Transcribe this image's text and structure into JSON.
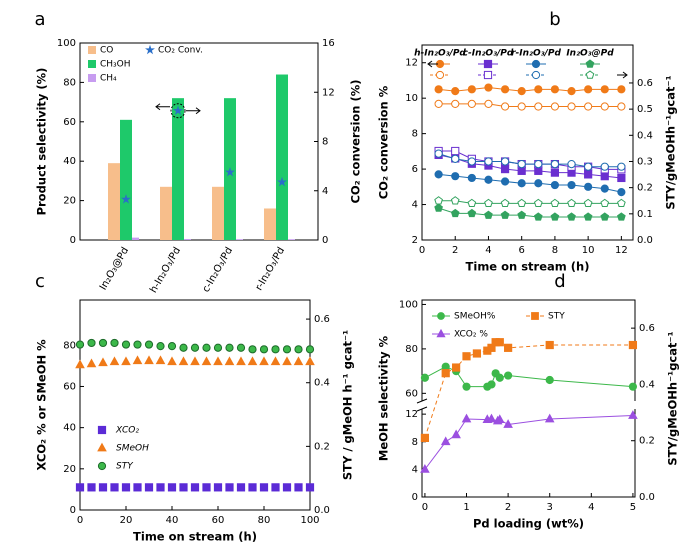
{
  "chart_data": [
    {
      "panel": "a",
      "type": "bar",
      "ylabel": "Product selectivity (%)",
      "y2label": "CO₂ conversion (%)",
      "categories": [
        "In₂O₃@Pd",
        "h-In₂O₃/Pd",
        "c-In₂O₃/Pd",
        "r-In₂O₃/Pd"
      ],
      "series": [
        {
          "name": "CO",
          "color": "#f7be8b",
          "values": [
            39,
            27,
            27,
            16
          ]
        },
        {
          "name": "CH₃OH",
          "color": "#1ec96a",
          "values": [
            61,
            72,
            72,
            84
          ]
        },
        {
          "name": "CH₄",
          "color": "#c79cf0",
          "values": [
            1.2,
            0.5,
            0.4,
            0.4
          ]
        },
        {
          "name": "CO₂ Conv.",
          "color": "#2a6fc9",
          "marker": "star",
          "axis": "y2",
          "values": [
            3.3,
            10.5,
            5.5,
            4.7
          ]
        }
      ],
      "ylim": [
        0,
        100
      ],
      "yticks": [
        0,
        20,
        40,
        60,
        80,
        100
      ],
      "y2lim": [
        0,
        16
      ],
      "y2ticks": [
        0,
        4,
        8,
        12,
        16
      ]
    },
    {
      "panel": "b",
      "type": "line",
      "xlabel": "Time on stream (h)",
      "ylabel": "CO₂ conversion %",
      "y2label": "STY/gMeOHh⁻¹gcat⁻¹",
      "x": [
        1,
        2,
        3,
        4,
        5,
        6,
        7,
        8,
        9,
        10,
        11,
        12
      ],
      "series": [
        {
          "name": "h-In₂O₃/Pd",
          "color": "#f07a18",
          "marker": "circle",
          "values": [
            10.5,
            10.4,
            10.5,
            10.6,
            10.5,
            10.4,
            10.5,
            10.5,
            10.4,
            10.5,
            10.5,
            10.5
          ],
          "y2_values": [
            0.52,
            0.52,
            0.52,
            0.52,
            0.51,
            0.51,
            0.51,
            0.51,
            0.51,
            0.51,
            0.51,
            0.51
          ]
        },
        {
          "name": "c-In₂O₃/Pd",
          "color": "#6a2fd0",
          "marker": "square",
          "values": [
            6.8,
            6.6,
            6.3,
            6.2,
            6.0,
            5.9,
            5.9,
            5.8,
            5.8,
            5.7,
            5.6,
            5.5
          ],
          "y2_values": [
            0.34,
            0.34,
            0.31,
            0.3,
            0.3,
            0.29,
            0.29,
            0.29,
            0.28,
            0.28,
            0.27,
            0.27
          ]
        },
        {
          "name": "r-In₂O₃/Pd",
          "color": "#1f6db0",
          "marker": "circle",
          "values": [
            5.7,
            5.6,
            5.5,
            5.4,
            5.3,
            5.2,
            5.2,
            5.1,
            5.1,
            5.0,
            4.9,
            4.7
          ],
          "y2_values": [
            0.33,
            0.31,
            0.3,
            0.3,
            0.3,
            0.29,
            0.29,
            0.29,
            0.29,
            0.28,
            0.28,
            0.28
          ]
        },
        {
          "name": "In₂O₃@Pd",
          "color": "#33a35f",
          "marker": "pentagon",
          "values": [
            3.8,
            3.5,
            3.5,
            3.4,
            3.4,
            3.4,
            3.3,
            3.3,
            3.3,
            3.3,
            3.3,
            3.3
          ],
          "y2_values": [
            0.15,
            0.15,
            0.14,
            0.14,
            0.14,
            0.14,
            0.14,
            0.14,
            0.14,
            0.14,
            0.14,
            0.14
          ]
        }
      ],
      "xlim": [
        0,
        12.7
      ],
      "xticks": [
        0,
        2,
        4,
        6,
        8,
        10,
        12
      ],
      "ylim": [
        2,
        13
      ],
      "yticks": [
        2,
        4,
        6,
        8,
        10,
        12
      ],
      "y2lim": [
        0,
        0.745
      ],
      "y2ticks": [
        {
          "value": 0,
          "label": "0.0"
        },
        0.1,
        0.2,
        0.3,
        0.4,
        0.5,
        0.6
      ]
    },
    {
      "panel": "c",
      "type": "scatter",
      "xlabel": "Time on stream (h)",
      "ylabel": "XCO₂ % or SMeOH %",
      "y2label": "STY / gMeOH h⁻¹ gcat⁻¹",
      "x": [
        0,
        5,
        10,
        15,
        20,
        25,
        30,
        35,
        40,
        45,
        50,
        55,
        60,
        65,
        70,
        75,
        80,
        85,
        90,
        95,
        100
      ],
      "series": [
        {
          "name": "XCO₂",
          "color": "#5b2bd6",
          "marker": "square",
          "values": [
            11,
            11,
            11,
            11,
            11,
            11,
            11,
            11,
            11,
            11,
            11,
            11,
            11,
            11,
            11,
            11,
            11,
            11,
            11,
            11,
            11
          ]
        },
        {
          "name": "SMeOH",
          "color": "#f07a18",
          "marker": "triangle",
          "values": [
            70.5,
            71,
            71.5,
            72,
            72,
            72.5,
            72.5,
            72.5,
            72,
            72,
            72,
            72,
            72,
            72,
            72,
            72,
            72,
            72,
            72,
            72,
            72
          ]
        },
        {
          "name": "STY",
          "color": "#3cb84a",
          "marker": "circle",
          "axis": "y2",
          "values": [
            0.52,
            0.525,
            0.525,
            0.525,
            0.52,
            0.52,
            0.52,
            0.515,
            0.515,
            0.51,
            0.51,
            0.51,
            0.51,
            0.51,
            0.51,
            0.505,
            0.505,
            0.505,
            0.505,
            0.505,
            0.505
          ]
        }
      ],
      "xlim": [
        0,
        100
      ],
      "xticks": [
        0,
        20,
        40,
        60,
        80,
        100
      ],
      "ylim": [
        0,
        102
      ],
      "yticks": [
        0,
        20,
        40,
        60,
        80
      ],
      "y2lim": [
        0,
        0.66
      ],
      "y2ticks": [
        {
          "value": 0,
          "label": "0.0"
        },
        0.2,
        0.4,
        0.6
      ]
    },
    {
      "panel": "d",
      "type": "line",
      "xlabel": "Pd loading (wt%)",
      "ylabel": "MeOH selectivity %",
      "y2label": "STY/gMeOHh⁻¹gcat⁻¹",
      "series": [
        {
          "name": "SMeOH%",
          "color": "#3cb84a",
          "marker": "circle",
          "x": [
            0,
            0.5,
            0.75,
            1,
            1.5,
            1.6,
            1.7,
            1.8,
            2,
            3,
            5
          ],
          "values": [
            67,
            72,
            70,
            63,
            63,
            64,
            69,
            67,
            68,
            66,
            63
          ]
        },
        {
          "name": "STY",
          "color": "#f07a18",
          "marker": "square",
          "axis": "y2",
          "linestyle": "dashed",
          "x": [
            0,
            0.5,
            0.75,
            1,
            1.25,
            1.5,
            1.6,
            1.7,
            1.8,
            2,
            3,
            5
          ],
          "values": [
            0.21,
            0.44,
            0.46,
            0.5,
            0.51,
            0.52,
            0.53,
            0.55,
            0.55,
            0.53,
            0.54,
            0.54
          ]
        },
        {
          "name": "XCO₂ %",
          "color": "#9b4fe0",
          "marker": "triangle",
          "x": [
            0,
            0.5,
            0.75,
            1,
            1.5,
            1.6,
            1.75,
            1.8,
            2,
            3,
            5
          ],
          "values": [
            4,
            8,
            9,
            11.3,
            11.2,
            11.3,
            11,
            11.2,
            10.5,
            11.3,
            11.8
          ]
        }
      ],
      "xlim": [
        -0.07,
        5.05
      ],
      "xticks": [
        0,
        1,
        2,
        3,
        4,
        5
      ],
      "ylim": [
        0,
        102
      ],
      "y_break": [
        12.6,
        57
      ],
      "yticks": [
        0,
        4,
        8,
        12,
        60,
        80,
        100
      ],
      "y2lim": [
        0,
        0.7
      ],
      "y2ticks": [
        {
          "value": 0,
          "label": "0.0"
        },
        0.2,
        0.4,
        0.6
      ]
    }
  ]
}
